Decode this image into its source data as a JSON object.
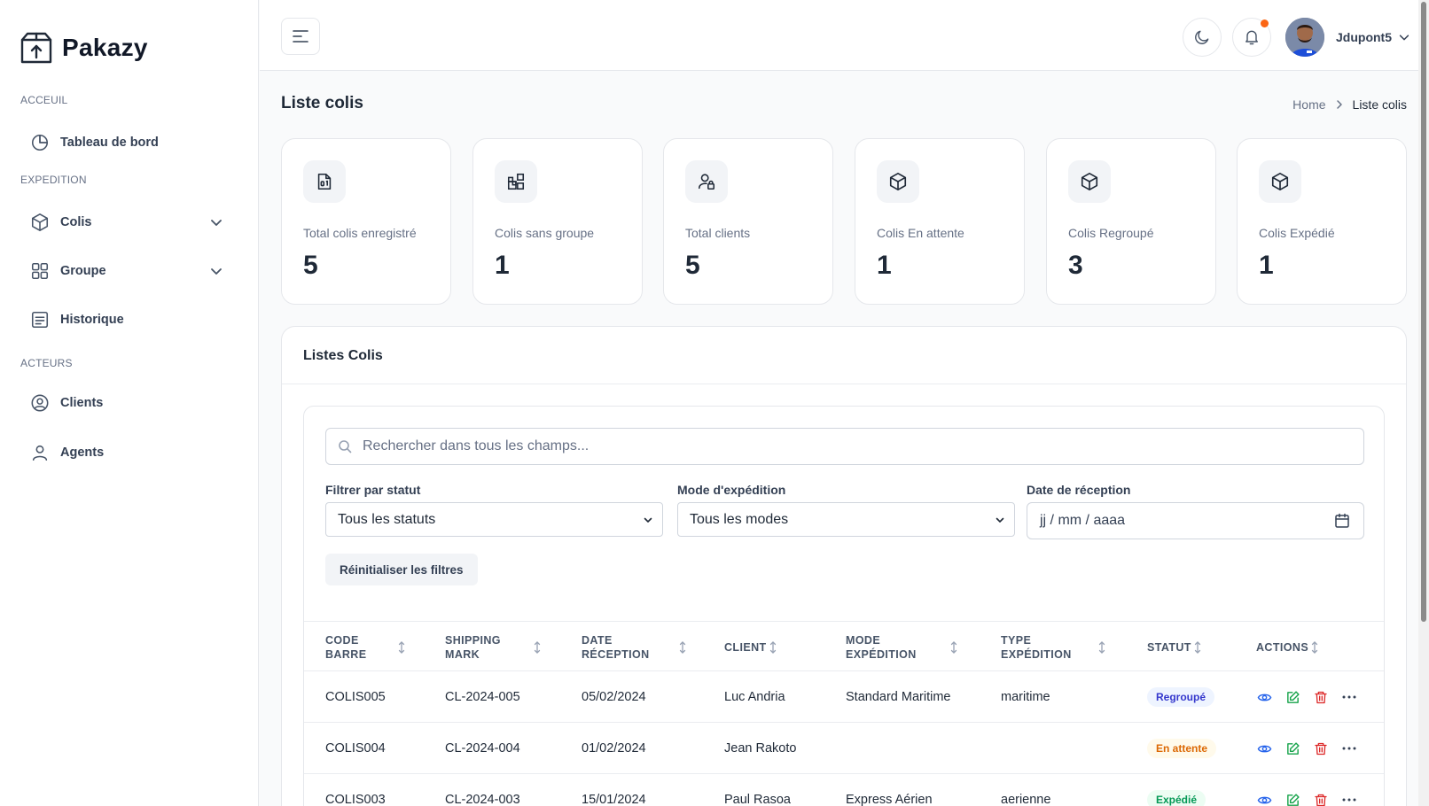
{
  "app": {
    "name": "Pakazy"
  },
  "sidebar": {
    "sections": [
      {
        "title": "ACCEUIL"
      },
      {
        "title": "EXPEDITION"
      },
      {
        "title": "ACTEURS"
      }
    ],
    "items": [
      {
        "label": "Tableau de bord",
        "icon": "pie-chart-icon"
      },
      {
        "label": "Colis",
        "icon": "box-icon",
        "expandable": true
      },
      {
        "label": "Groupe",
        "icon": "grid-icon",
        "expandable": true
      },
      {
        "label": "Historique",
        "icon": "list-icon"
      },
      {
        "label": "Clients",
        "icon": "user-circle-icon"
      },
      {
        "label": "Agents",
        "icon": "user-icon"
      }
    ]
  },
  "topbar": {
    "username": "Jdupont5",
    "has_notification": true
  },
  "page": {
    "title": "Liste colis",
    "breadcrumb": {
      "home": "Home",
      "current": "Liste colis"
    }
  },
  "stats": [
    {
      "label": "Total colis enregistré",
      "value": "5",
      "icon": "file-icon"
    },
    {
      "label": "Colis sans groupe",
      "value": "1",
      "icon": "shapes-icon"
    },
    {
      "label": "Total clients",
      "value": "5",
      "icon": "user-lock-icon"
    },
    {
      "label": "Colis En attente",
      "value": "1",
      "icon": "cube-icon"
    },
    {
      "label": "Colis Regroupé",
      "value": "3",
      "icon": "cube-icon"
    },
    {
      "label": "Colis Expédié",
      "value": "1",
      "icon": "cube-icon"
    }
  ],
  "list": {
    "title": "Listes Colis",
    "search_placeholder": "Rechercher dans tous les champs...",
    "filters": {
      "status_label": "Filtrer par statut",
      "status_value": "Tous les statuts",
      "mode_label": "Mode d'expédition",
      "mode_value": "Tous les modes",
      "date_label": "Date de réception",
      "date_placeholder": "jj / mm / aaaa"
    },
    "reset_label": "Réinitialiser les filtres",
    "columns": [
      {
        "line1": "CODE",
        "line2": "BARRE"
      },
      {
        "line1": "SHIPPING",
        "line2": "MARK"
      },
      {
        "line1": "DATE",
        "line2": "RÉCEPTION"
      },
      {
        "line1": "CLIENT",
        "line2": ""
      },
      {
        "line1": "MODE",
        "line2": "EXPÉDITION"
      },
      {
        "line1": "TYPE",
        "line2": "EXPÉDITION"
      },
      {
        "line1": "STATUT",
        "line2": ""
      },
      {
        "line1": "ACTIONS",
        "line2": ""
      }
    ],
    "rows": [
      {
        "code": "COLIS005",
        "mark": "CL-2024-005",
        "date": "05/02/2024",
        "client": "Luc Andria",
        "mode": "Standard Maritime",
        "type": "maritime",
        "status": "Regroupé",
        "status_kind": "regroupe"
      },
      {
        "code": "COLIS004",
        "mark": "CL-2024-004",
        "date": "01/02/2024",
        "client": "Jean Rakoto",
        "mode": "",
        "type": "",
        "status": "En attente",
        "status_kind": "attente"
      },
      {
        "code": "COLIS003",
        "mark": "CL-2024-003",
        "date": "15/01/2024",
        "client": "Paul Rasoa",
        "mode": "Express Aérien",
        "type": "aerienne",
        "status": "Expédié",
        "status_kind": "expedie"
      }
    ]
  },
  "colors": {
    "notification_dot": "#fb6514",
    "view_action": "#2563eb",
    "edit_action": "#16a34a",
    "delete_action": "#dc2626"
  }
}
